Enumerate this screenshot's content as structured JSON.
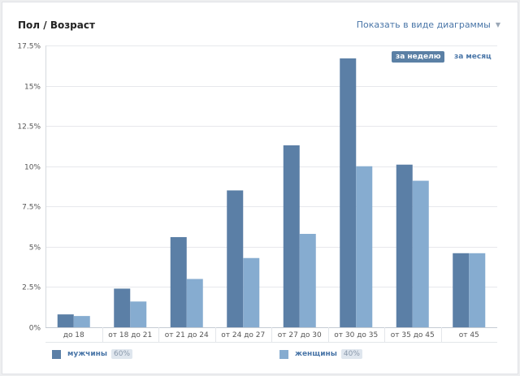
{
  "header": {
    "title": "Пол / Возраст",
    "show_as_label": "Показать в виде диаграммы"
  },
  "period_toggle": {
    "week_label": "за неделю",
    "month_label": "за месяц",
    "selected": "week"
  },
  "legend": {
    "items": [
      {
        "name": "мужчины",
        "percent": "60%",
        "color": "#5b7fa6"
      },
      {
        "name": "женщины",
        "percent": "40%",
        "color": "#86acd0"
      }
    ]
  },
  "chart_data": {
    "type": "bar",
    "categories": [
      "до 18",
      "от 18 до 21",
      "от 21 до 24",
      "от 24 до 27",
      "от 27 до 30",
      "от 30 до 35",
      "от 35 до 45",
      "от 45"
    ],
    "series": [
      {
        "name": "мужчины",
        "values": [
          0.8,
          2.4,
          5.6,
          8.5,
          11.3,
          16.7,
          10.1,
          4.6
        ],
        "color": "#5b7fa6"
      },
      {
        "name": "женщины",
        "values": [
          0.7,
          1.6,
          3.0,
          4.3,
          5.8,
          10.0,
          9.1,
          4.6
        ],
        "color": "#86acd0"
      }
    ],
    "y_ticks": [
      "0%",
      "2.5%",
      "5%",
      "7.5%",
      "10%",
      "12.5%",
      "15%",
      "17.5%"
    ],
    "ylim": [
      0,
      17.5
    ],
    "grid": true,
    "legend_position": "bottom"
  }
}
